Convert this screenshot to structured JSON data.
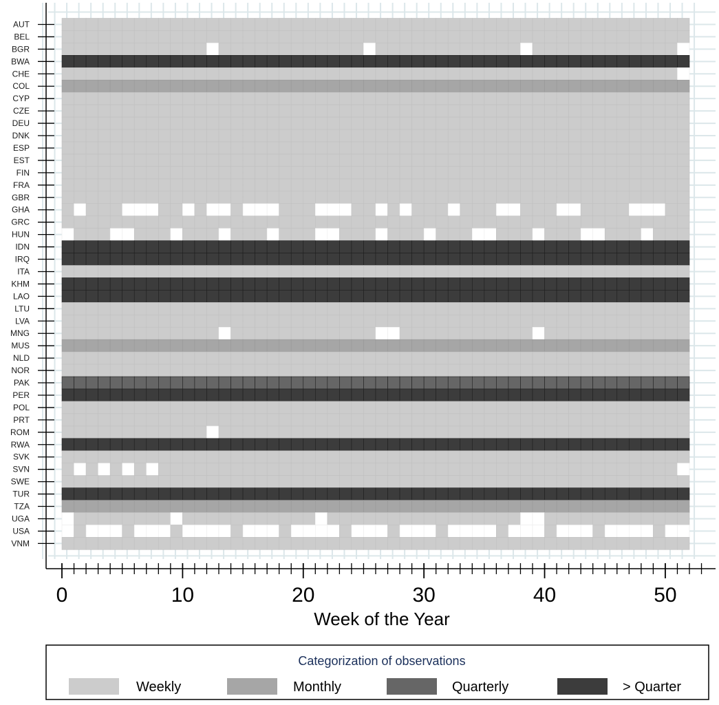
{
  "chart_data": {
    "type": "heatmap",
    "xlabel": "Week of the Year",
    "xlim": [
      0,
      52
    ],
    "x_ticks_major": [
      0,
      10,
      20,
      30,
      40,
      50
    ],
    "countries": [
      "AUT",
      "BEL",
      "BGR",
      "BWA",
      "CHE",
      "COL",
      "CYP",
      "CZE",
      "DEU",
      "DNK",
      "ESP",
      "EST",
      "FIN",
      "FRA",
      "GBR",
      "GHA",
      "GRC",
      "HUN",
      "IDN",
      "IRQ",
      "ITA",
      "KHM",
      "LAO",
      "LTU",
      "LVA",
      "MNG",
      "MUS",
      "NLD",
      "NOR",
      "PAK",
      "PER",
      "POL",
      "PRT",
      "ROM",
      "RWA",
      "SVK",
      "SVN",
      "SWE",
      "TUR",
      "TZA",
      "UGA",
      "USA",
      "VNM"
    ],
    "default_category": "Weekly",
    "row_categories": {
      "BWA": ">Quarter",
      "COL": "Monthly",
      "IDN": ">Quarter",
      "IRQ": ">Quarter",
      "KHM": ">Quarter",
      "LAO": ">Quarter",
      "MUS": "Monthly",
      "PAK": "Quarterly",
      "PER": ">Quarter",
      "RWA": ">Quarter",
      "TUR": ">Quarter",
      "TZA": "Monthly"
    },
    "missing_weeks": {
      "BGR": [
        13,
        26,
        39,
        52
      ],
      "CHE": [
        52
      ],
      "GHA": [
        2,
        6,
        7,
        8,
        11,
        13,
        14,
        16,
        17,
        18,
        22,
        23,
        24,
        27,
        29,
        33,
        37,
        38,
        42,
        43,
        48,
        49,
        50
      ],
      "HUN": [
        1,
        5,
        6,
        10,
        14,
        18,
        22,
        23,
        27,
        31,
        35,
        36,
        40,
        44,
        45,
        49
      ],
      "MNG": [
        14,
        27,
        28,
        40
      ],
      "ROM": [
        13
      ],
      "SVN": [
        2,
        4,
        6,
        8,
        52
      ],
      "UGA": [
        1,
        10,
        22,
        39,
        40
      ],
      "USA": [
        1,
        3,
        4,
        5,
        7,
        8,
        9,
        11,
        12,
        13,
        14,
        16,
        17,
        18,
        20,
        21,
        22,
        23,
        25,
        26,
        27,
        29,
        30,
        31,
        33,
        34,
        35,
        36,
        38,
        39,
        40,
        42,
        43,
        44,
        46,
        47,
        48,
        49,
        51,
        52
      ]
    },
    "legend": {
      "title": "Categorization of observations",
      "placement": "bottom",
      "items": [
        {
          "label": "Weekly",
          "color": "#cccccc"
        },
        {
          "label": "Monthly",
          "color": "#a6a6a6"
        },
        {
          "label": "Quarterly",
          "color": "#666666"
        },
        {
          "label": "> Quarter",
          "color": "#3c3c3c"
        }
      ]
    },
    "category_colors": {
      "Weekly": "#cccccc",
      "Monthly": "#a6a6a6",
      "Quarterly": "#666666",
      ">Quarter": "#3c3c3c",
      "missing": "#ffffff"
    },
    "background_grid_color": "#dce7ea"
  }
}
